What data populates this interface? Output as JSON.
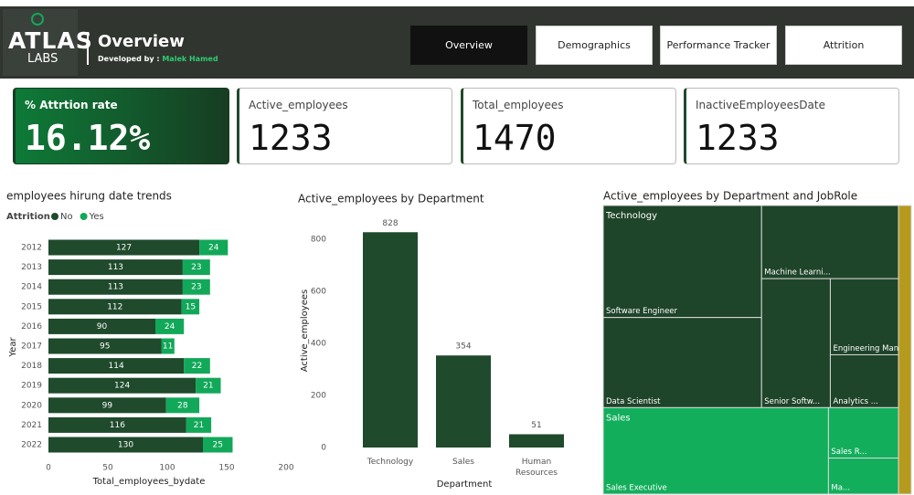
{
  "header": {
    "logo_top": "ATLAS",
    "logo_bottom": "LABS",
    "title": "Overview",
    "developed_by": "Developed by :",
    "author": "Malek Hamed"
  },
  "nav": [
    "Overview",
    "Demographics",
    "Performance Tracker",
    "Attrition"
  ],
  "cards": [
    {
      "label": "% Attrtion rate",
      "value": "16.12%"
    },
    {
      "label": "Active_employees",
      "value": 1233
    },
    {
      "label": "Total_employees",
      "value": 1470
    },
    {
      "label": "InactiveEmployeesDate",
      "value": 1233
    }
  ],
  "chart_data": [
    {
      "type": "barh",
      "title": "employees hirung date trends",
      "legend_title": "Attrition",
      "categories": [
        "2012",
        "2013",
        "2014",
        "2015",
        "2016",
        "2017",
        "2018",
        "2019",
        "2020",
        "2021",
        "2022"
      ],
      "series": [
        {
          "name": "No",
          "color": "#1f4a2c",
          "values": [
            127,
            113,
            113,
            112,
            90,
            95,
            114,
            124,
            99,
            116,
            130
          ]
        },
        {
          "name": "Yes",
          "color": "#12a85a",
          "values": [
            24,
            23,
            23,
            15,
            24,
            11,
            22,
            21,
            28,
            21,
            25
          ]
        }
      ],
      "xlim": [
        0,
        200
      ],
      "xticks": [
        0,
        50,
        100,
        150,
        200
      ],
      "x_label": "Total_employees_bydate",
      "y_label": "Year"
    },
    {
      "type": "bar",
      "title": "Active_employees by Department",
      "categories": [
        "Technology",
        "Sales",
        "Human Resources"
      ],
      "values": [
        828,
        354,
        51
      ],
      "color": "#1f4a2c",
      "ylim": [
        0,
        850
      ],
      "yticks": [
        0,
        200,
        400,
        600,
        800
      ],
      "x_label": "Department",
      "y_label": "Active_employees"
    },
    {
      "type": "treemap",
      "title": "Active_employees by Department and JobRole",
      "groups": [
        {
          "name": "Technology",
          "color": "#1e4429",
          "children": [
            {
              "name": "Software Engineer",
              "value": 246
            },
            {
              "name": "Data Scientist",
              "value": 198
            },
            {
              "name": "Machine Learni...",
              "value": 139
            },
            {
              "name": "Senior Softw...",
              "value": 123
            },
            {
              "name": "Engineering Man...",
              "value": 72
            },
            {
              "name": "Analytics ...",
              "value": 50
            }
          ]
        },
        {
          "name": "Sales",
          "color": "#12ae5c",
          "children": [
            {
              "name": "Sales Executive",
              "value": 270
            },
            {
              "name": "Sales R...",
              "value": 49
            },
            {
              "name": "Ma...",
              "value": 35
            }
          ]
        },
        {
          "name": null,
          "color": "#b59a1e",
          "children": [
            {
              "name": null,
              "value": 51
            }
          ]
        }
      ]
    }
  ]
}
